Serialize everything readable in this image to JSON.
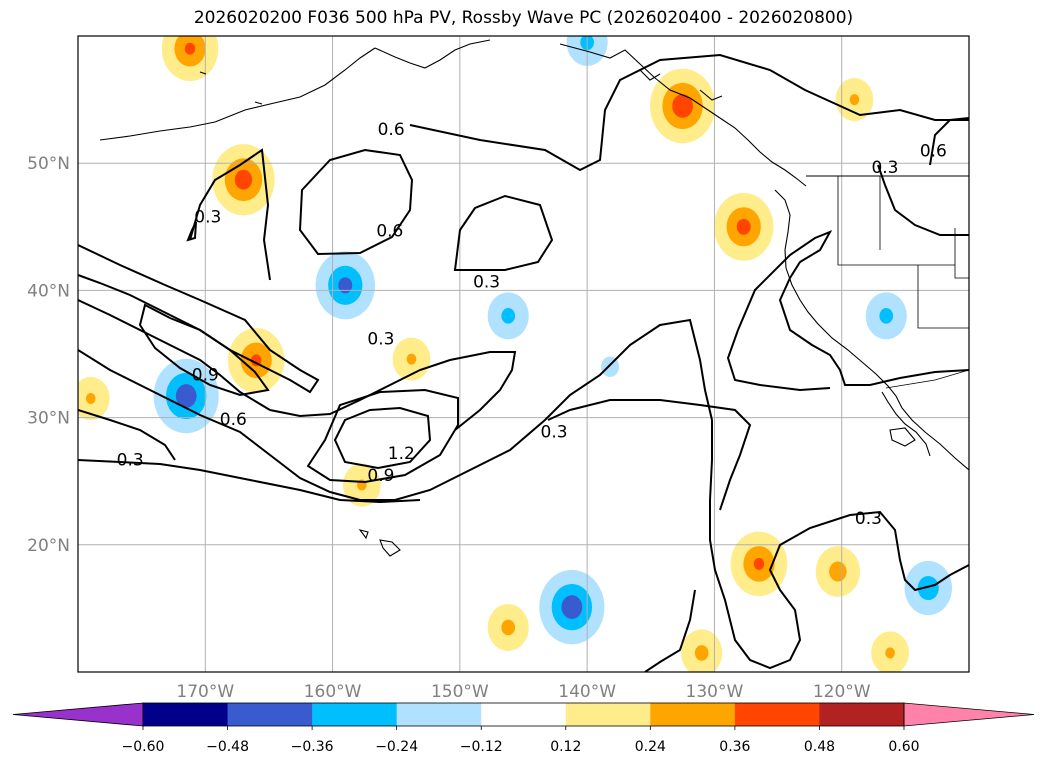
{
  "title": "2026020200 F036 500 hPa PV, Rossby Wave PC (2026020400 - 2026020800)",
  "colors": {
    "gridline": "#b0b0b0",
    "coast": "#000000",
    "contour": "#000000",
    "tick_label": "#808080"
  },
  "chart_data": {
    "type": "filled-contour-map",
    "title": "2026020200 F036 500 hPa PV, Rossby Wave PC (2026020400 - 2026020800)",
    "xlabel": "",
    "ylabel": "",
    "lon_range": [
      -180,
      -110
    ],
    "lat_range": [
      10,
      60
    ],
    "grid": true,
    "lon_ticks": [
      -170,
      -160,
      -150,
      -140,
      -130,
      -120
    ],
    "lon_tick_labels": [
      "170°W",
      "160°W",
      "150°W",
      "140°W",
      "130°W",
      "120°W"
    ],
    "lat_ticks": [
      20,
      30,
      40,
      50
    ],
    "lat_tick_labels": [
      "20°N",
      "30°N",
      "40°N",
      "50°N"
    ],
    "colorbar": {
      "orientation": "horizontal",
      "extend": "both",
      "boundaries": [
        -0.72,
        -0.6,
        -0.48,
        -0.36,
        -0.24,
        -0.12,
        0.12,
        0.24,
        0.36,
        0.48,
        0.6,
        0.72
      ],
      "colors": [
        "#9932cc",
        "#00008b",
        "#3a5bd0",
        "#00bfff",
        "#b0e2ff",
        "#ffffff",
        "#ffec8b",
        "#ffa500",
        "#ff4500",
        "#b22222",
        "#ff82ab"
      ],
      "tick_values": [
        -0.6,
        -0.48,
        -0.36,
        -0.24,
        -0.12,
        0.12,
        0.24,
        0.36,
        0.48,
        0.6
      ],
      "tick_labels": [
        "−0.60",
        "−0.48",
        "−0.36",
        "−0.24",
        "−0.12",
        "0.12",
        "0.24",
        "0.36",
        "0.48",
        "0.60"
      ]
    },
    "contour_labels": [
      {
        "text": "0.6",
        "lon": -155.4,
        "lat": 52.7
      },
      {
        "text": "0.3",
        "lon": -169.8,
        "lat": 45.8
      },
      {
        "text": "0.6",
        "lon": -155.5,
        "lat": 44.7
      },
      {
        "text": "0.3",
        "lon": -147.9,
        "lat": 40.7
      },
      {
        "text": "0.3",
        "lon": -156.2,
        "lat": 36.2
      },
      {
        "text": "0.9",
        "lon": -170.0,
        "lat": 33.4
      },
      {
        "text": "0.6",
        "lon": -167.8,
        "lat": 29.9
      },
      {
        "text": "0.3",
        "lon": -175.9,
        "lat": 26.7
      },
      {
        "text": "1.2",
        "lon": -154.6,
        "lat": 27.2
      },
      {
        "text": "0.9",
        "lon": -156.2,
        "lat": 25.5
      },
      {
        "text": "0.3",
        "lon": -142.6,
        "lat": 28.9
      },
      {
        "text": "0.6",
        "lon": -112.8,
        "lat": 51.0
      },
      {
        "text": "0.3",
        "lon": -116.6,
        "lat": 49.7
      },
      {
        "text": "0.3",
        "lon": -117.9,
        "lat": 22.1
      }
    ],
    "anomalies": [
      {
        "lon": -167.0,
        "lat": 48.7,
        "value": 0.42
      },
      {
        "lon": -171.2,
        "lat": 59.0,
        "value": 0.38
      },
      {
        "lon": -166.0,
        "lat": 34.5,
        "value": 0.38
      },
      {
        "lon": -153.8,
        "lat": 34.6,
        "value": 0.26
      },
      {
        "lon": -179.0,
        "lat": 31.5,
        "value": 0.26
      },
      {
        "lon": -157.7,
        "lat": 24.7,
        "value": 0.26
      },
      {
        "lon": -132.5,
        "lat": 54.5,
        "value": 0.44
      },
      {
        "lon": -127.7,
        "lat": 45.0,
        "value": 0.4
      },
      {
        "lon": -119.0,
        "lat": 55.0,
        "value": 0.26
      },
      {
        "lon": -126.5,
        "lat": 18.5,
        "value": 0.38
      },
      {
        "lon": -120.3,
        "lat": 17.9,
        "value": 0.3
      },
      {
        "lon": -146.2,
        "lat": 13.5,
        "value": 0.28
      },
      {
        "lon": -131.0,
        "lat": 11.5,
        "value": 0.28
      },
      {
        "lon": -116.2,
        "lat": 11.5,
        "value": 0.26
      },
      {
        "lon": -171.5,
        "lat": 31.7,
        "value": -0.44
      },
      {
        "lon": -159.0,
        "lat": 40.4,
        "value": -0.4
      },
      {
        "lon": -146.2,
        "lat": 38.0,
        "value": -0.28
      },
      {
        "lon": -141.2,
        "lat": 15.1,
        "value": -0.44
      },
      {
        "lon": -116.5,
        "lat": 38.0,
        "value": -0.28
      },
      {
        "lon": -113.2,
        "lat": 16.6,
        "value": -0.32
      },
      {
        "lon": -140.0,
        "lat": 59.5,
        "value": -0.28
      },
      {
        "lon": -138.2,
        "lat": 34.0,
        "value": -0.16
      }
    ]
  }
}
